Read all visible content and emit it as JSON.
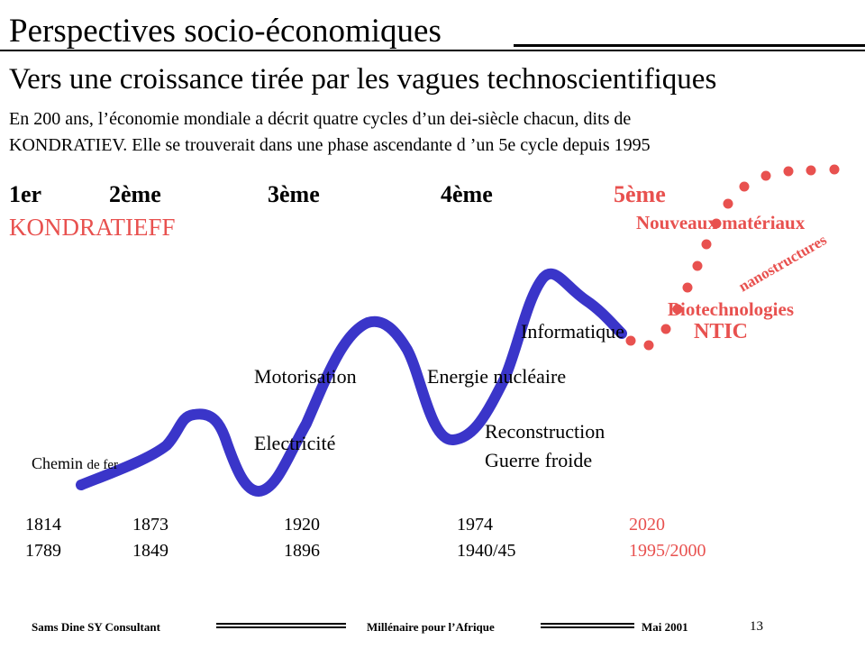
{
  "slide": {
    "title": "Perspectives socio-économiques",
    "subtitle": "Vers une croissance tirée par les vagues technoscientifiques",
    "para_line1": "En 200 ans, l’économie mondiale a décrit quatre cycles d’un dei-siècle chacun, dits de",
    "para_line2": "KONDRATIEV. Elle se trouverait dans une phase ascendante d ’un 5e cycle depuis 1995",
    "page_number": "13"
  },
  "cycles": {
    "c1": "1er",
    "c2": "2ème",
    "c3": "3ème",
    "c4": "4ème",
    "c5": "5ème",
    "kondratieff": "KONDRATIEFF"
  },
  "labels": {
    "chemin_main": "Chemin ",
    "chemin_small": "de fer",
    "electricite": "Electricité",
    "motorisation": "Motorisation",
    "energie": "Energie nucléaire",
    "reconstruction": "Reconstruction",
    "guerre": "Guerre froide",
    "informatique": "Informatique",
    "ntic": "NTIC",
    "biotech": "Biotechnologies",
    "nanostructures": "nanostructures",
    "nouveaux": "Nouveaux  matériaux"
  },
  "years": {
    "top": [
      "1814",
      "1873",
      "1920",
      "1974",
      "2020"
    ],
    "bottom": [
      "1789",
      "1849",
      "1896",
      "1940/45",
      "1995/2000"
    ]
  },
  "footer": {
    "left": "Sams Dine SY Consultant",
    "center": "Millénaire pour l’Afrique",
    "right": "Mai 2001"
  },
  "colors": {
    "wave": "#3a35c9",
    "accent": "#e8514f"
  }
}
